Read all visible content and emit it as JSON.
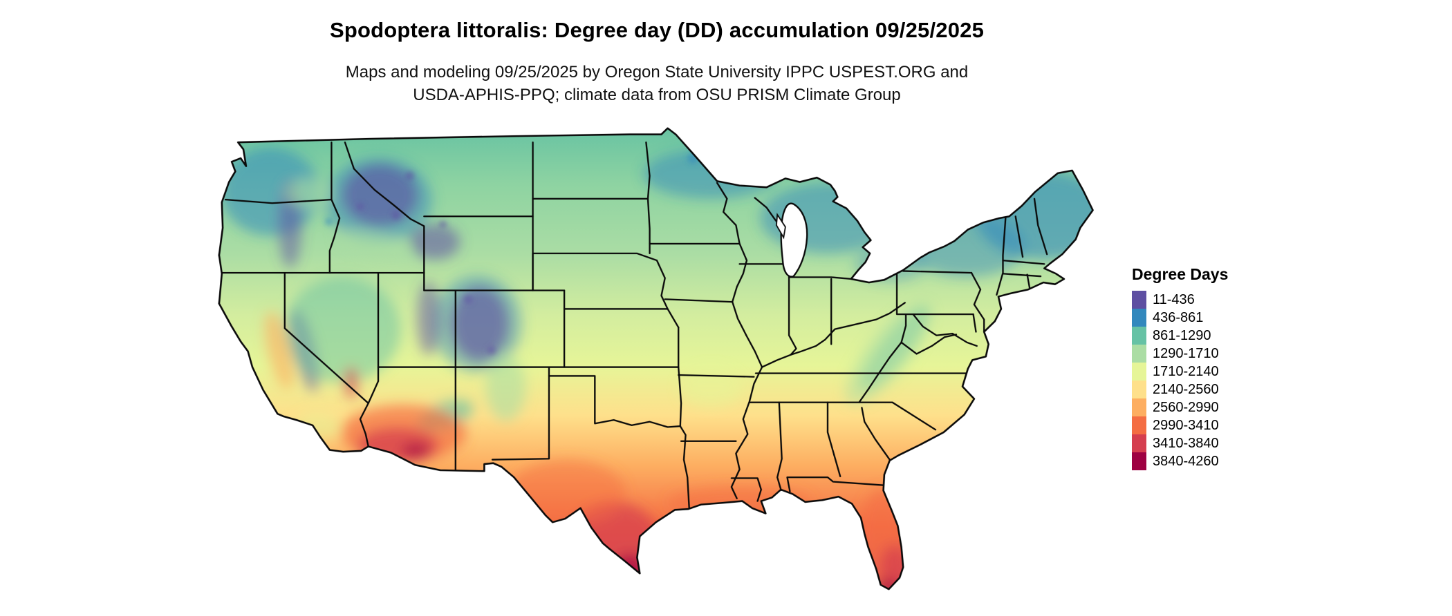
{
  "title": "Spodoptera littoralis: Degree day (DD) accumulation 09/25/2025",
  "subtitle_line1": "Maps and modeling 09/25/2025 by Oregon State University IPPC USPEST.ORG and",
  "subtitle_line2": "USDA-APHIS-PPQ; climate data from OSU PRISM Climate Group",
  "map": {
    "region": "Conterminous United States",
    "kind": "degree-day accumulation raster map with state borders"
  },
  "legend": {
    "title": "Degree Days",
    "items": [
      {
        "label": "11-436",
        "color": "#5e4fa2"
      },
      {
        "label": "436-861",
        "color": "#3288bd"
      },
      {
        "label": "861-1290",
        "color": "#66c2a5"
      },
      {
        "label": "1290-1710",
        "color": "#abdda4"
      },
      {
        "label": "1710-2140",
        "color": "#e6f598"
      },
      {
        "label": "2140-2560",
        "color": "#fee08b"
      },
      {
        "label": "2560-2990",
        "color": "#fdae61"
      },
      {
        "label": "2990-3410",
        "color": "#f46d43"
      },
      {
        "label": "3410-3840",
        "color": "#d53e4f"
      },
      {
        "label": "3840-4260",
        "color": "#9e0142"
      }
    ]
  }
}
